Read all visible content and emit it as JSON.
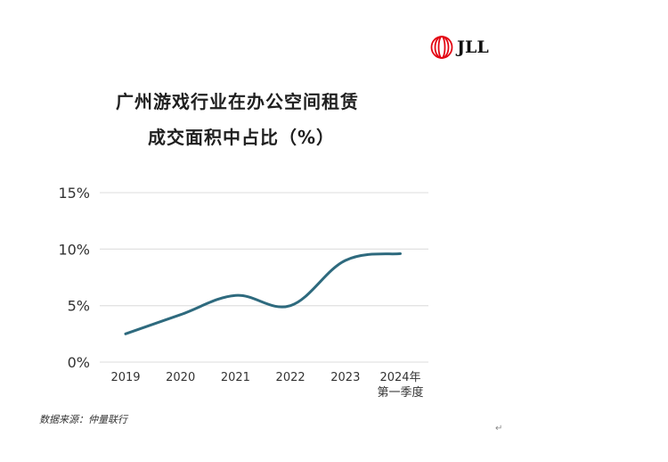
{
  "header": {
    "logo_text": "JLL",
    "title_line1": "广州游戏行业在办公空间租赁",
    "title_line2": "成交面积中占比（%）"
  },
  "footer": {
    "source": "数据来源：仲量联行",
    "paragraph_mark": "↵"
  },
  "colors": {
    "line": "#2E6A7E",
    "grid": "#e3e3e3",
    "logo_red": "#e30613"
  },
  "chart_data": {
    "type": "line",
    "title": "广州游戏行业在办公空间租赁成交面积中占比（%）",
    "xlabel": "",
    "ylabel": "",
    "categories": [
      "2019",
      "2020",
      "2021",
      "2022",
      "2023",
      "2024年第一季度"
    ],
    "category_lines": [
      [
        "2019"
      ],
      [
        "2020"
      ],
      [
        "2021"
      ],
      [
        "2022"
      ],
      [
        "2023"
      ],
      [
        "2024年",
        "第一季度"
      ]
    ],
    "series": [
      {
        "name": "占比",
        "values": [
          2.5,
          4.2,
          5.9,
          5.0,
          9.0,
          9.6
        ]
      }
    ],
    "ylim": [
      0,
      15
    ],
    "yticks": [
      0,
      5,
      10,
      15
    ],
    "ytick_labels": [
      "0%",
      "5%",
      "10%",
      "15%"
    ],
    "grid": true,
    "legend": "none",
    "smooth": true
  }
}
